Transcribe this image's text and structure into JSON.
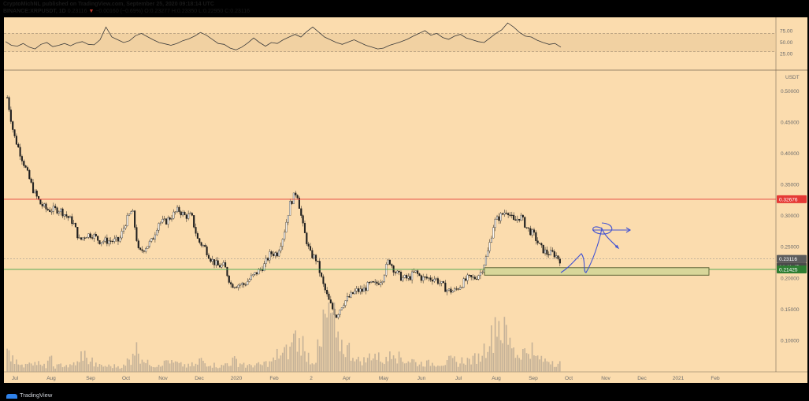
{
  "header": {
    "line1": "CryptoMichNL published on TradingView.com, September 25, 2020 09:18:14 UTC",
    "line2_symbol": "BINANCE:XRPUSDT, 1D",
    "line2_last": "0.23116",
    "line2_change": "−0.00160 (−0.69%)",
    "line2_open": "O:0.23277",
    "line2_high": "H:0.23350",
    "line2_low": "L:0.22950",
    "line2_close": "C:0.23116"
  },
  "footer": {
    "brand": "TradingView"
  },
  "colors": {
    "background": "#fbdcae",
    "candle": "#1e1e1e",
    "resistance": "#e53935",
    "support": "#43a047",
    "zone_fill": "#d8d79a",
    "zone_stroke": "#4f5b2d",
    "drawing": "#3f51d3",
    "last_price_badge": "#5b5b5b",
    "support_badge": "#2e7d32",
    "resistance_badge": "#e53935"
  },
  "chart_data": [
    {
      "type": "line",
      "title": "",
      "ylim": [
        0,
        100
      ],
      "yticks": [
        "75.00",
        "50.00",
        "25.00"
      ],
      "band": [
        30,
        70
      ],
      "note": "RSI oscillator pane",
      "series": [
        {
          "values": [
            52,
            44,
            42,
            48,
            40,
            36,
            46,
            50,
            41,
            44,
            48,
            43,
            49,
            52,
            46,
            45,
            56,
            84,
            62,
            56,
            50,
            54,
            65,
            70,
            63,
            56,
            50,
            47,
            44,
            48,
            54,
            58,
            64,
            72,
            66,
            57,
            48,
            46,
            38,
            34,
            40,
            49,
            60,
            50,
            42,
            50,
            48,
            56,
            62,
            68,
            62,
            74,
            84,
            73,
            62,
            56,
            50,
            46,
            51,
            56,
            50,
            44,
            40,
            36,
            38,
            44,
            48,
            52,
            57,
            64,
            70,
            76,
            66,
            70,
            61,
            57,
            64,
            68,
            60,
            56,
            52,
            50,
            60,
            70,
            78,
            93,
            84,
            72,
            64,
            62,
            55,
            50,
            46,
            48,
            40
          ]
        }
      ]
    },
    {
      "type": "candlestick",
      "title": "",
      "ylabel": "USDT",
      "ylim": [
        0.05,
        0.53
      ],
      "yticks": [
        "0.50000",
        "0.45000",
        "0.40000",
        "0.35000",
        "0.30000",
        "0.25000",
        "0.20000",
        "0.15000",
        "0.10000"
      ],
      "xticks": [
        "Jul",
        "Aug",
        "Sep",
        "Oct",
        "Nov",
        "Dec",
        "2020",
        "Feb",
        "2",
        "Apr",
        "May",
        "Jun",
        "Jul",
        "Aug",
        "Sep",
        "Oct",
        "Nov",
        "Dec",
        "2021",
        "Feb"
      ],
      "price_badges": [
        "0.32676",
        "0.23116",
        "14:41:45",
        "0.21425"
      ],
      "levels": {
        "resistance": 0.32676,
        "support": 0.21425,
        "current": 0.23116
      },
      "zone": {
        "from": "Jul 2020",
        "to": "Feb 2021",
        "low": 0.205,
        "high": 0.217
      },
      "series": [
        {
          "name": "XRPUSDT",
          "values": [
            0.49,
            0.43,
            0.4,
            0.37,
            0.34,
            0.32,
            0.31,
            0.31,
            0.31,
            0.3,
            0.29,
            0.26,
            0.27,
            0.27,
            0.26,
            0.26,
            0.26,
            0.26,
            0.29,
            0.31,
            0.24,
            0.25,
            0.26,
            0.29,
            0.29,
            0.3,
            0.31,
            0.3,
            0.3,
            0.26,
            0.25,
            0.23,
            0.22,
            0.22,
            0.19,
            0.19,
            0.19,
            0.2,
            0.21,
            0.22,
            0.24,
            0.24,
            0.27,
            0.32,
            0.34,
            0.28,
            0.24,
            0.23,
            0.19,
            0.16,
            0.14,
            0.16,
            0.17,
            0.18,
            0.18,
            0.19,
            0.19,
            0.2,
            0.23,
            0.21,
            0.2,
            0.2,
            0.21,
            0.2,
            0.2,
            0.2,
            0.19,
            0.18,
            0.18,
            0.19,
            0.2,
            0.2,
            0.21,
            0.24,
            0.29,
            0.3,
            0.31,
            0.29,
            0.3,
            0.28,
            0.27,
            0.25,
            0.24,
            0.24,
            0.23
          ]
        }
      ],
      "volume": [
        0.3,
        0.2,
        0.1,
        0.2,
        0.15,
        0.1,
        0.2,
        0.1,
        0.12,
        0.1,
        0.15,
        0.3,
        0.2,
        0.12,
        0.1,
        0.1,
        0.1,
        0.1,
        0.2,
        0.4,
        0.25,
        0.15,
        0.12,
        0.15,
        0.2,
        0.15,
        0.12,
        0.1,
        0.12,
        0.2,
        0.15,
        0.12,
        0.1,
        0.15,
        0.2,
        0.15,
        0.1,
        0.12,
        0.12,
        0.15,
        0.2,
        0.3,
        0.35,
        0.6,
        0.5,
        0.3,
        0.2,
        0.4,
        0.9,
        1.0,
        0.5,
        0.4,
        0.3,
        0.2,
        0.2,
        0.3,
        0.25,
        0.2,
        0.4,
        0.25,
        0.2,
        0.2,
        0.15,
        0.15,
        0.15,
        0.15,
        0.15,
        0.2,
        0.15,
        0.2,
        0.2,
        0.25,
        0.4,
        0.6,
        0.9,
        0.7,
        0.5,
        0.3,
        0.35,
        0.4,
        0.25,
        0.2,
        0.2,
        0.15,
        0.15
      ]
    }
  ]
}
